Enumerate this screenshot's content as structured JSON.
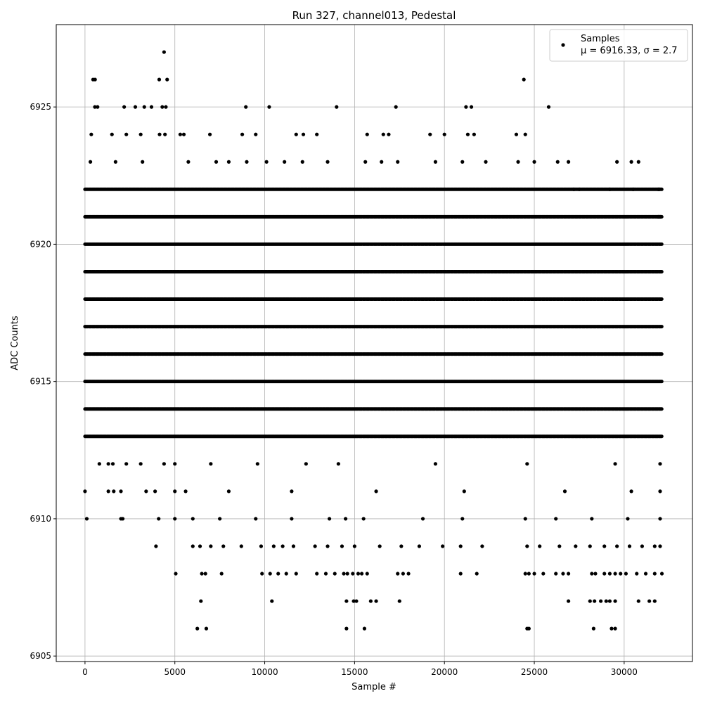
{
  "chart_data": {
    "type": "scatter",
    "title": "Run 327, channel013, Pedestal",
    "xlabel": "Sample #",
    "ylabel": "ADC Counts",
    "xlim": [
      -1600,
      33800
    ],
    "ylim": [
      6904.8,
      6928.0
    ],
    "x_ticks": [
      0,
      5000,
      10000,
      15000,
      20000,
      25000,
      30000
    ],
    "y_ticks": [
      6905,
      6910,
      6915,
      6920,
      6925
    ],
    "grid": true,
    "legend": {
      "placement": "top-right",
      "entries": [
        {
          "line1": "Samples",
          "line2": "μ = 6916.33, σ = 2.7"
        }
      ]
    },
    "marker_color": "#000000",
    "series": [
      {
        "name": "Samples",
        "x_range": [
          0,
          32100
        ],
        "level_counts": [
          {
            "y": 6913,
            "x_segments": [
              [
                0,
                32100
              ]
            ]
          },
          {
            "y": 6914,
            "x_segments": [
              [
                0,
                32100
              ]
            ]
          },
          {
            "y": 6915,
            "x_segments": [
              [
                0,
                32100
              ]
            ]
          },
          {
            "y": 6916,
            "x_segments": [
              [
                0,
                32100
              ]
            ]
          },
          {
            "y": 6917,
            "x_segments": [
              [
                0,
                32100
              ]
            ]
          },
          {
            "y": 6918,
            "x_segments": [
              [
                0,
                32100
              ]
            ]
          },
          {
            "y": 6919,
            "x_segments": [
              [
                0,
                32100
              ]
            ]
          },
          {
            "y": 6920,
            "x_segments": [
              [
                0,
                32100
              ]
            ]
          },
          {
            "y": 6921,
            "x_segments": [
              [
                0,
                32100
              ]
            ]
          },
          {
            "y": 6922,
            "x_segments": [
              [
                0,
                32100
              ]
            ]
          }
        ],
        "points": [
          [
            0,
            6911
          ],
          [
            100,
            6910
          ],
          [
            3950,
            6909
          ],
          [
            4400,
            6927
          ],
          [
            450,
            6926
          ],
          [
            560,
            6926
          ],
          [
            4130,
            6926
          ],
          [
            4570,
            6926
          ],
          [
            24420,
            6926
          ],
          [
            550,
            6925
          ],
          [
            700,
            6925
          ],
          [
            2180,
            6925
          ],
          [
            2800,
            6925
          ],
          [
            3300,
            6925
          ],
          [
            3700,
            6925
          ],
          [
            4300,
            6925
          ],
          [
            4500,
            6925
          ],
          [
            8950,
            6925
          ],
          [
            10250,
            6925
          ],
          [
            14000,
            6925
          ],
          [
            17300,
            6925
          ],
          [
            21200,
            6925
          ],
          [
            21500,
            6925
          ],
          [
            25800,
            6925
          ],
          [
            350,
            6924
          ],
          [
            1500,
            6924
          ],
          [
            2300,
            6924
          ],
          [
            3100,
            6924
          ],
          [
            4150,
            6924
          ],
          [
            4450,
            6924
          ],
          [
            5300,
            6924
          ],
          [
            5500,
            6924
          ],
          [
            6950,
            6924
          ],
          [
            8750,
            6924
          ],
          [
            9500,
            6924
          ],
          [
            11750,
            6924
          ],
          [
            12150,
            6924
          ],
          [
            12900,
            6924
          ],
          [
            15700,
            6924
          ],
          [
            16600,
            6924
          ],
          [
            16900,
            6924
          ],
          [
            19200,
            6924
          ],
          [
            20000,
            6924
          ],
          [
            21300,
            6924
          ],
          [
            21650,
            6924
          ],
          [
            24000,
            6924
          ],
          [
            24500,
            6924
          ],
          [
            300,
            6923
          ],
          [
            1700,
            6923
          ],
          [
            3200,
            6923
          ],
          [
            5750,
            6923
          ],
          [
            7300,
            6923
          ],
          [
            8000,
            6923
          ],
          [
            9000,
            6923
          ],
          [
            10100,
            6923
          ],
          [
            11100,
            6923
          ],
          [
            12100,
            6923
          ],
          [
            13500,
            6923
          ],
          [
            15600,
            6923
          ],
          [
            16500,
            6923
          ],
          [
            17400,
            6923
          ],
          [
            19500,
            6923
          ],
          [
            21000,
            6923
          ],
          [
            22300,
            6923
          ],
          [
            24100,
            6923
          ],
          [
            25000,
            6923
          ],
          [
            26300,
            6923
          ],
          [
            26900,
            6923
          ],
          [
            29600,
            6923
          ],
          [
            30400,
            6923
          ],
          [
            30800,
            6923
          ],
          [
            31900,
            6922
          ],
          [
            31950,
            6922
          ],
          [
            27200,
            6922
          ],
          [
            27500,
            6922
          ],
          [
            29200,
            6922
          ],
          [
            30500,
            6922
          ],
          [
            31900,
            6921
          ],
          [
            32000,
            6921
          ],
          [
            800,
            6912
          ],
          [
            1300,
            6912
          ],
          [
            1550,
            6912
          ],
          [
            2300,
            6912
          ],
          [
            3100,
            6912
          ],
          [
            4400,
            6912
          ],
          [
            5000,
            6912
          ],
          [
            7000,
            6912
          ],
          [
            9600,
            6912
          ],
          [
            12300,
            6912
          ],
          [
            14100,
            6912
          ],
          [
            19500,
            6912
          ],
          [
            24600,
            6912
          ],
          [
            29500,
            6912
          ],
          [
            32000,
            6912
          ],
          [
            1300,
            6911
          ],
          [
            1600,
            6911
          ],
          [
            2000,
            6911
          ],
          [
            3400,
            6911
          ],
          [
            3900,
            6911
          ],
          [
            5000,
            6911
          ],
          [
            5600,
            6911
          ],
          [
            8000,
            6911
          ],
          [
            11500,
            6911
          ],
          [
            16200,
            6911
          ],
          [
            21100,
            6911
          ],
          [
            26700,
            6911
          ],
          [
            30400,
            6911
          ],
          [
            32000,
            6911
          ],
          [
            2000,
            6910
          ],
          [
            2100,
            6910
          ],
          [
            4100,
            6910
          ],
          [
            5000,
            6910
          ],
          [
            6000,
            6910
          ],
          [
            7500,
            6910
          ],
          [
            9500,
            6910
          ],
          [
            11500,
            6910
          ],
          [
            13600,
            6910
          ],
          [
            14500,
            6910
          ],
          [
            15500,
            6910
          ],
          [
            18800,
            6910
          ],
          [
            21000,
            6910
          ],
          [
            24500,
            6910
          ],
          [
            26200,
            6910
          ],
          [
            28200,
            6910
          ],
          [
            30200,
            6910
          ],
          [
            32000,
            6910
          ],
          [
            6000,
            6909
          ],
          [
            6400,
            6909
          ],
          [
            7000,
            6909
          ],
          [
            7700,
            6909
          ],
          [
            8700,
            6909
          ],
          [
            9800,
            6909
          ],
          [
            10500,
            6909
          ],
          [
            11000,
            6909
          ],
          [
            11600,
            6909
          ],
          [
            12800,
            6909
          ],
          [
            13500,
            6909
          ],
          [
            14300,
            6909
          ],
          [
            15000,
            6909
          ],
          [
            16400,
            6909
          ],
          [
            17600,
            6909
          ],
          [
            18600,
            6909
          ],
          [
            19900,
            6909
          ],
          [
            20900,
            6909
          ],
          [
            22100,
            6909
          ],
          [
            24600,
            6909
          ],
          [
            25300,
            6909
          ],
          [
            26400,
            6909
          ],
          [
            27300,
            6909
          ],
          [
            28100,
            6909
          ],
          [
            28900,
            6909
          ],
          [
            29600,
            6909
          ],
          [
            30300,
            6909
          ],
          [
            31000,
            6909
          ],
          [
            31700,
            6909
          ],
          [
            32000,
            6909
          ],
          [
            5050,
            6908
          ],
          [
            6500,
            6908
          ],
          [
            6700,
            6908
          ],
          [
            7600,
            6908
          ],
          [
            9850,
            6908
          ],
          [
            10300,
            6908
          ],
          [
            10750,
            6908
          ],
          [
            11200,
            6908
          ],
          [
            11750,
            6908
          ],
          [
            12900,
            6908
          ],
          [
            13400,
            6908
          ],
          [
            13900,
            6908
          ],
          [
            14400,
            6908
          ],
          [
            14600,
            6908
          ],
          [
            14900,
            6908
          ],
          [
            15200,
            6908
          ],
          [
            15400,
            6908
          ],
          [
            15700,
            6908
          ],
          [
            17400,
            6908
          ],
          [
            17700,
            6908
          ],
          [
            18000,
            6908
          ],
          [
            20900,
            6908
          ],
          [
            21800,
            6908
          ],
          [
            24500,
            6908
          ],
          [
            24700,
            6908
          ],
          [
            25000,
            6908
          ],
          [
            25500,
            6908
          ],
          [
            26200,
            6908
          ],
          [
            26600,
            6908
          ],
          [
            26900,
            6908
          ],
          [
            28200,
            6908
          ],
          [
            28400,
            6908
          ],
          [
            28900,
            6908
          ],
          [
            29200,
            6908
          ],
          [
            29500,
            6908
          ],
          [
            29800,
            6908
          ],
          [
            30100,
            6908
          ],
          [
            30700,
            6908
          ],
          [
            31200,
            6908
          ],
          [
            31700,
            6908
          ],
          [
            32100,
            6908
          ],
          [
            6450,
            6907
          ],
          [
            10400,
            6907
          ],
          [
            14550,
            6907
          ],
          [
            14950,
            6907
          ],
          [
            15100,
            6907
          ],
          [
            15900,
            6907
          ],
          [
            16200,
            6907
          ],
          [
            17500,
            6907
          ],
          [
            26900,
            6907
          ],
          [
            28100,
            6907
          ],
          [
            28350,
            6907
          ],
          [
            28700,
            6907
          ],
          [
            29000,
            6907
          ],
          [
            29200,
            6907
          ],
          [
            29500,
            6907
          ],
          [
            30800,
            6907
          ],
          [
            31400,
            6907
          ],
          [
            31700,
            6907
          ],
          [
            6250,
            6906
          ],
          [
            6750,
            6906
          ],
          [
            14550,
            6906
          ],
          [
            15550,
            6906
          ],
          [
            24600,
            6906
          ],
          [
            24700,
            6906
          ],
          [
            28300,
            6906
          ],
          [
            29300,
            6906
          ],
          [
            29500,
            6906
          ]
        ]
      }
    ]
  }
}
